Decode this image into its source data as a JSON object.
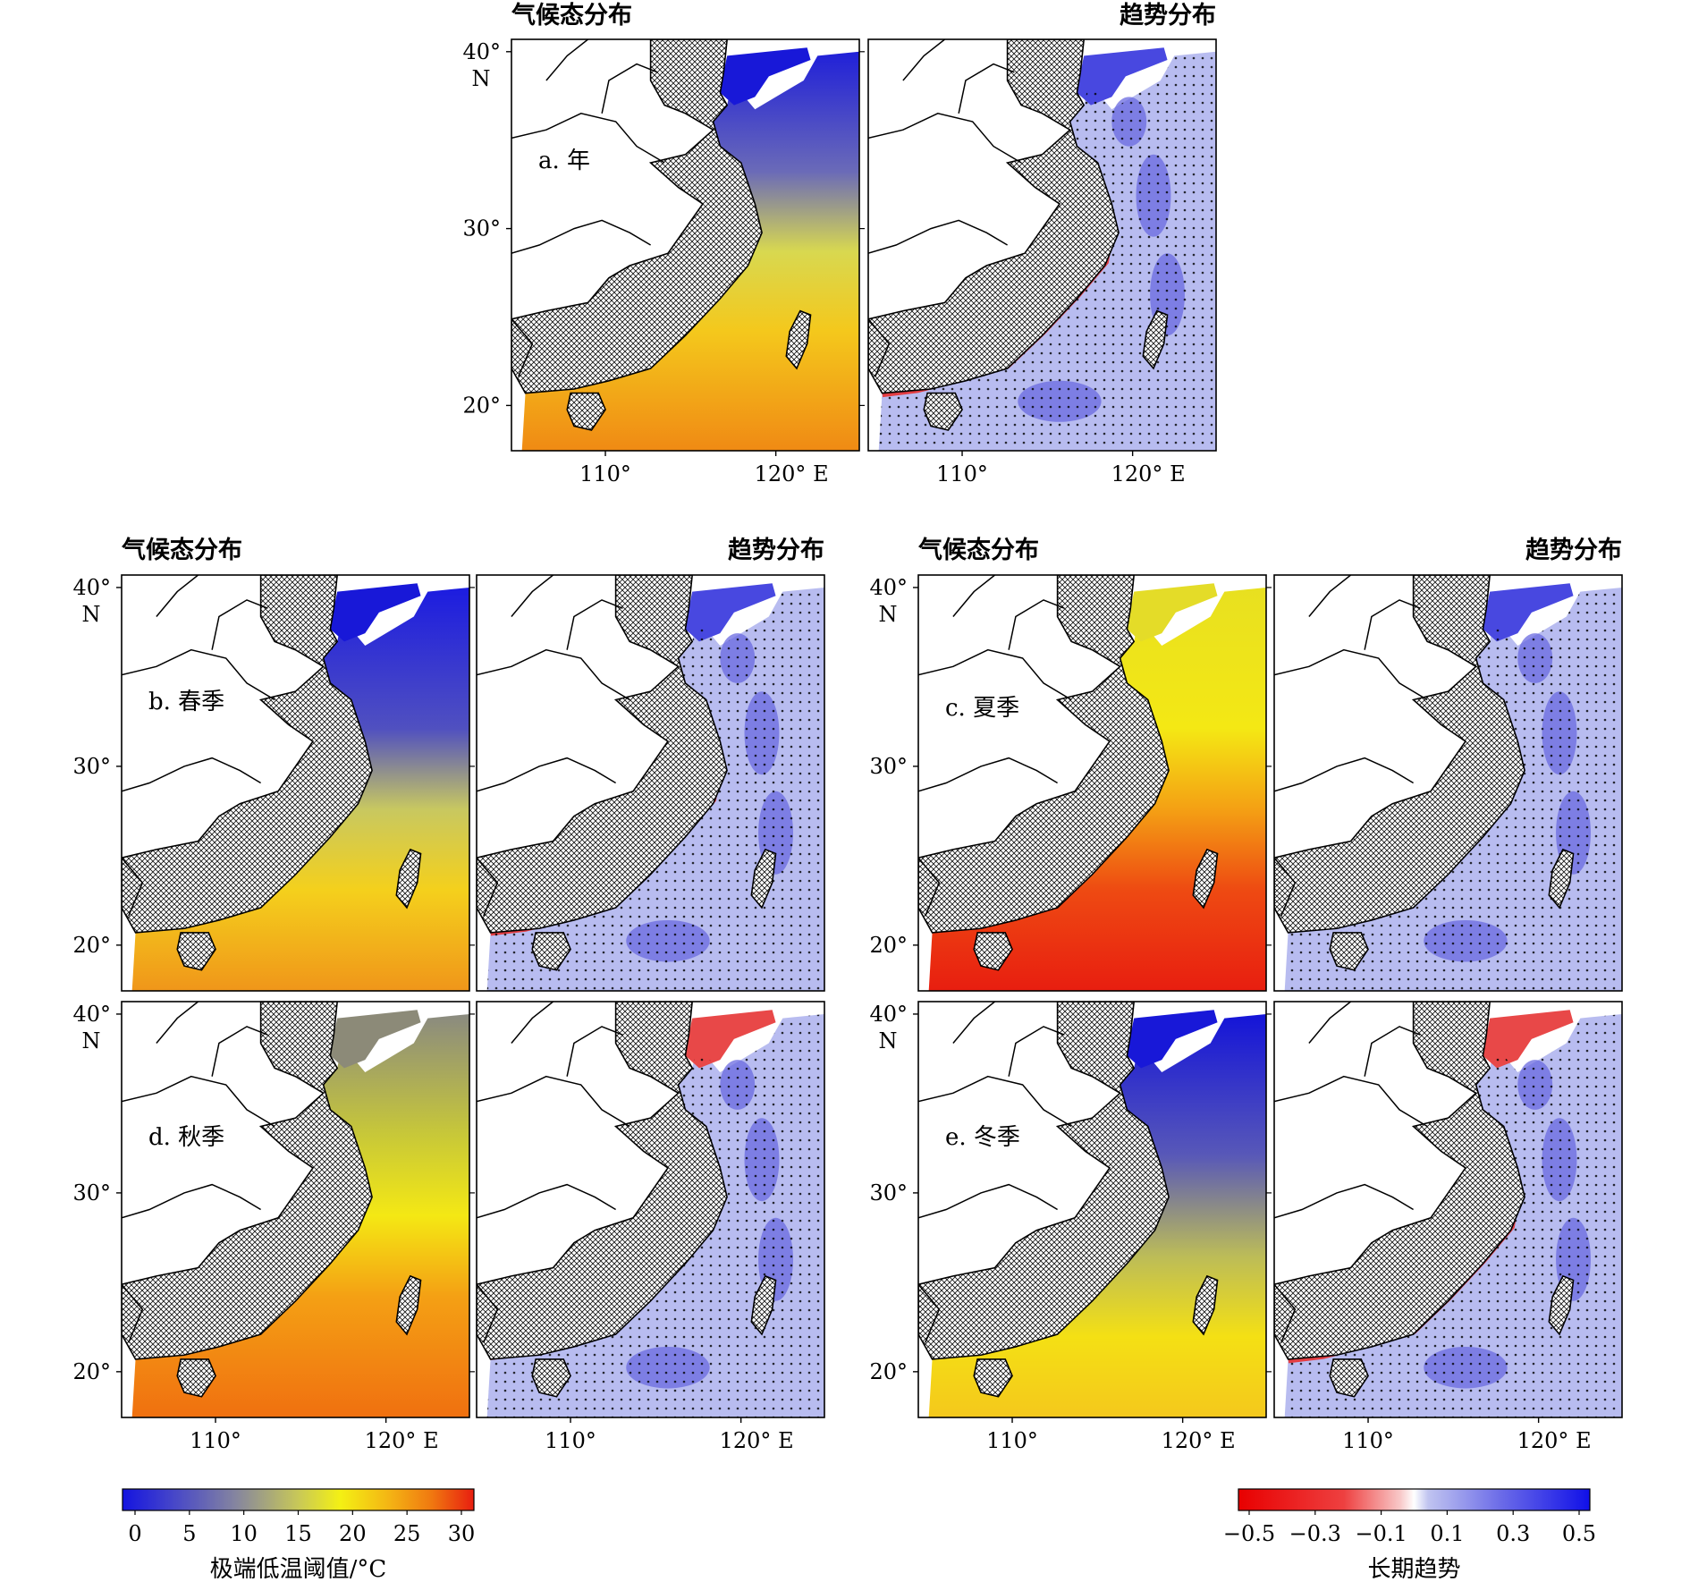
{
  "headings": {
    "climatology": "气候态分布",
    "trend": "趋势分布"
  },
  "axes": {
    "lat_ticks": [
      "40°",
      "30°",
      "20°"
    ],
    "lat_unit": "N",
    "lon_ticks": [
      "110°",
      "120°"
    ],
    "lon_unit": "E"
  },
  "panels": [
    {
      "label": "a. 年",
      "climatology_scheme": "annual",
      "trend_scheme": "annual"
    },
    {
      "label": "b. 春季",
      "climatology_scheme": "spring",
      "trend_scheme": "spring"
    },
    {
      "label": "c. 夏季",
      "climatology_scheme": "summer",
      "trend_scheme": "summer"
    },
    {
      "label": "d. 秋季",
      "climatology_scheme": "autumn",
      "trend_scheme": "autumn"
    },
    {
      "label": "e. 冬季",
      "climatology_scheme": "winter",
      "trend_scheme": "winter"
    }
  ],
  "colorbars": {
    "climatology": {
      "title": "极端低温阈值/°C",
      "ticks": [
        "0",
        "5",
        "10",
        "15",
        "20",
        "25",
        "30"
      ],
      "colors": [
        "#1414e0",
        "#4848c8",
        "#8484a0",
        "#c8c858",
        "#f4f014",
        "#f4b414",
        "#f07810",
        "#e81e10"
      ]
    },
    "trend": {
      "title": "长期趋势",
      "ticks": [
        "−0.5",
        "−0.3",
        "−0.1",
        "0.1",
        "0.3",
        "0.5"
      ],
      "colors": [
        "#e80000",
        "#ee4040",
        "#f8b8b8",
        "#ffffff",
        "#c0c4f0",
        "#6a6ae8",
        "#1010e8"
      ]
    }
  },
  "colors": {
    "land_hatch": "#000000",
    "land_plain": "#ffffff",
    "coastline": "#000000"
  }
}
